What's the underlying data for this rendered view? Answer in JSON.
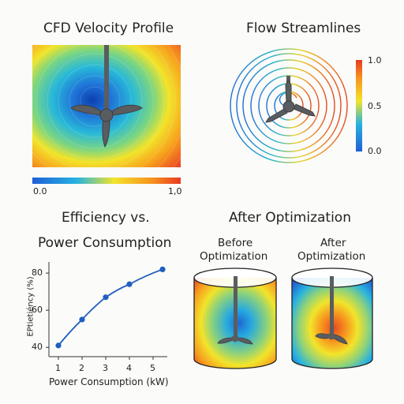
{
  "panels": {
    "cfd": {
      "title": "CFD Velocity Profile",
      "colorbar_min": "0.0",
      "colorbar_max": "1,0"
    },
    "streamlines": {
      "title": "Flow Streamlines",
      "colorbar_ticks": [
        "1.0",
        "0.5",
        "0.0"
      ]
    },
    "efficiency": {
      "title_line1": "Efficiency vs.",
      "title_line2": "Power Consumption"
    },
    "optimization": {
      "title": "After Optimization",
      "before_label_line1": "Before",
      "before_label_line2": "Optimization",
      "after_label_line1": "After",
      "after_label_line2": "Optimization"
    }
  },
  "colors": {
    "low": "#1f6fd8",
    "mid": "#f2e42a",
    "high": "#e83a22",
    "impeller": "#5a5d60",
    "line": "#1f5fbf"
  },
  "chart_data": {
    "type": "line",
    "x": [
      1,
      2,
      3,
      4,
      5.4
    ],
    "y": [
      41,
      55,
      67,
      74,
      82
    ],
    "xlabel": "Power Consumption (kW)",
    "ylabel": "EPtietiéncy (%)",
    "xticks": [
      "1",
      "2",
      "3",
      "4",
      "5"
    ],
    "yticks": [
      "40",
      "60",
      "80"
    ],
    "xlim": [
      0.6,
      5.6
    ],
    "ylim": [
      35,
      86
    ],
    "grid": false
  }
}
